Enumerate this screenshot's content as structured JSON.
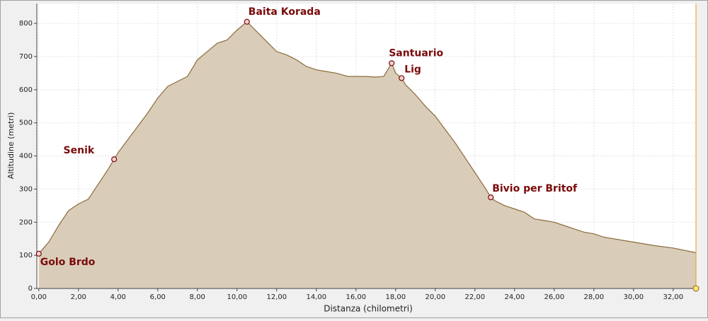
{
  "chart_data": {
    "type": "area",
    "xlabel": "Distanza (chilometri)",
    "ylabel": "Altitudine (metri)",
    "x": [
      0,
      0.5,
      1,
      1.5,
      2,
      2.5,
      3,
      3.5,
      3.8,
      4,
      4.5,
      5,
      5.5,
      6,
      6.5,
      7,
      7.5,
      8,
      8.5,
      9,
      9.5,
      10,
      10.5,
      11,
      11.5,
      12,
      12.5,
      13,
      13.5,
      14,
      14.5,
      15,
      15.3,
      15.6,
      16,
      16.5,
      17,
      17.4,
      17.8,
      18,
      18.3,
      18.5,
      19,
      19.5,
      20,
      20.5,
      21,
      21.5,
      22,
      22.5,
      22.8,
      23,
      23.5,
      24,
      24.5,
      25,
      25.5,
      26,
      26.5,
      27,
      27.5,
      28,
      28.5,
      29,
      29.5,
      30,
      31,
      32,
      33.15
    ],
    "series": [
      {
        "color": "#8b6b3a",
        "values": [
          105,
          140,
          190,
          235,
          255,
          270,
          315,
          360,
          390,
          410,
          450,
          490,
          530,
          575,
          610,
          625,
          640,
          690,
          715,
          740,
          750,
          780,
          805,
          775,
          745,
          715,
          705,
          690,
          670,
          660,
          655,
          650,
          645,
          640,
          640,
          640,
          638,
          640,
          680,
          650,
          635,
          615,
          585,
          550,
          520,
          480,
          440,
          395,
          350,
          305,
          275,
          265,
          250,
          240,
          230,
          210,
          205,
          200,
          190,
          180,
          170,
          165,
          155,
          150,
          145,
          140,
          130,
          122,
          108
        ]
      }
    ],
    "annotations": [
      {
        "label": "Golo Brdo",
        "x": 0,
        "y": 105
      },
      {
        "label": "Senik",
        "x": 3.8,
        "y": 390
      },
      {
        "label": "Baita Korada",
        "x": 10.5,
        "y": 805
      },
      {
        "label": "Santuario",
        "x": 17.8,
        "y": 680
      },
      {
        "label": "Lig",
        "x": 18.3,
        "y": 635
      },
      {
        "label": "Bivio per Britof",
        "x": 22.8,
        "y": 275
      }
    ],
    "xlim": [
      -0.1,
      33.15
    ],
    "ylim": [
      0,
      860
    ],
    "xticks": [
      {
        "value": 0,
        "label": "0,00"
      },
      {
        "value": 2,
        "label": "2,00"
      },
      {
        "value": 4,
        "label": "4,00"
      },
      {
        "value": 6,
        "label": "6,00"
      },
      {
        "value": 8,
        "label": "8,00"
      },
      {
        "value": 10,
        "label": "10,00"
      },
      {
        "value": 12,
        "label": "12,00"
      },
      {
        "value": 14,
        "label": "14,00"
      },
      {
        "value": 16,
        "label": "16,00"
      },
      {
        "value": 18,
        "label": "18,00"
      },
      {
        "value": 20,
        "label": "20,00"
      },
      {
        "value": 22,
        "label": "22,00"
      },
      {
        "value": 24,
        "label": "24,00"
      },
      {
        "value": 26,
        "label": "26,00"
      },
      {
        "value": 28,
        "label": "28,00"
      },
      {
        "value": 30,
        "label": "30,00"
      },
      {
        "value": 32,
        "label": "32,00"
      }
    ],
    "yticks": [
      0,
      100,
      200,
      300,
      400,
      500,
      600,
      700,
      800
    ],
    "fill": "#d9cdb9",
    "grid": true
  }
}
